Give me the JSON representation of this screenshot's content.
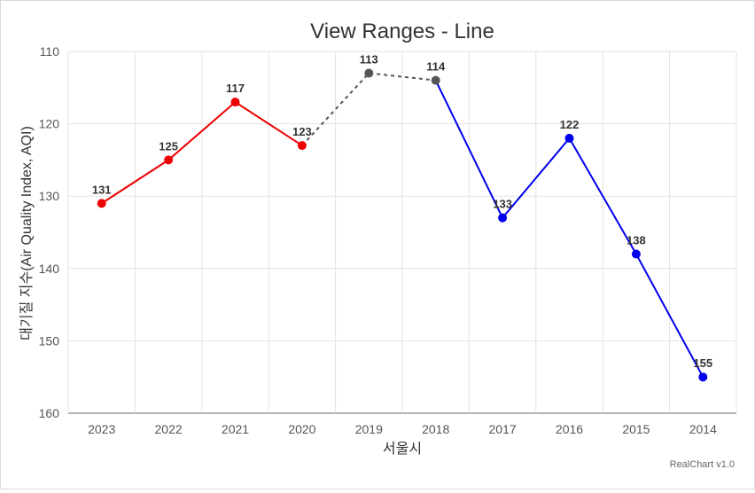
{
  "chart_data": {
    "type": "line",
    "title": "View Ranges - Line",
    "xlabel": "서울시",
    "ylabel": "대기질 지수(Air Quality Index, AQI)",
    "categories": [
      "2023",
      "2022",
      "2021",
      "2020",
      "2019",
      "2018",
      "2017",
      "2016",
      "2015",
      "2014"
    ],
    "values": [
      131,
      125,
      117,
      123,
      113,
      114,
      133,
      122,
      138,
      155
    ],
    "ylim": [
      110,
      160
    ],
    "y_reversed": true,
    "yticks": [
      110,
      120,
      130,
      140,
      150,
      160
    ],
    "grid": true,
    "data_labels": true,
    "ranges": [
      {
        "from": 0,
        "to": 3,
        "color": "#ee0000",
        "style": "solid"
      },
      {
        "from": 3,
        "to": 5,
        "color": "#555555",
        "style": "dashed"
      },
      {
        "from": 5,
        "to": 9,
        "color": "#0000ee",
        "style": "solid"
      }
    ]
  },
  "credits": "RealChart v1.0"
}
